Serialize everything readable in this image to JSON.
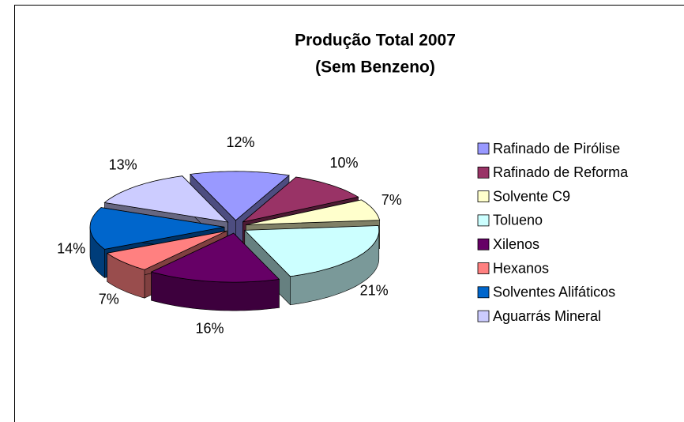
{
  "chart_data": {
    "type": "pie3d",
    "title": "Produção Total 2007",
    "subtitle": "(Sem Benzeno)",
    "categories": [
      "Rafinado de Pirólise",
      "Rafinado de Reforma",
      "Solvente C9",
      "Tolueno",
      "Xilenos",
      "Hexanos",
      "Solventes Alifáticos",
      "Aguarrás Mineral"
    ],
    "values": [
      12,
      10,
      7,
      21,
      16,
      7,
      14,
      13
    ],
    "value_labels": [
      "12%",
      "10%",
      "7%",
      "21%",
      "16%",
      "7%",
      "14%",
      "13%"
    ],
    "colors": [
      "#9999ff",
      "#993366",
      "#ffffcc",
      "#ccffff",
      "#660066",
      "#ff8080",
      "#0066cc",
      "#ccccff"
    ],
    "legend": "right"
  }
}
